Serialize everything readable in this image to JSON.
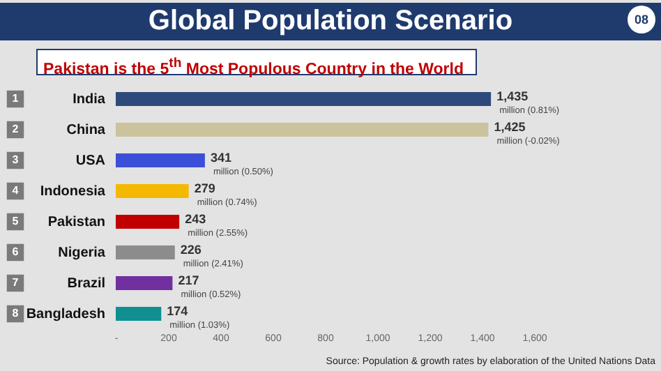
{
  "chart_data": {
    "type": "bar",
    "orientation": "horizontal",
    "title": "Global Population Scenario",
    "subtitle": "Pakistan is the 5$^{th}$ Most Populous Country in the World",
    "categories": [
      "India",
      "China",
      "USA",
      "Indonesia",
      "Pakistan",
      "Nigeria",
      "Brazil",
      "Bangladesh"
    ],
    "values": [
      1435,
      1425,
      341,
      279,
      243,
      226,
      217,
      174
    ],
    "colors": [
      "#2e4a7d",
      "#cbc29e",
      "#3b4fd8",
      "#f5b800",
      "#c00000",
      "#8c8c8c",
      "#7030a0",
      "#0f8f8f"
    ],
    "value_labels": [
      "1,435",
      "1,425",
      "341",
      "279",
      "243",
      "226",
      "217",
      "174"
    ],
    "xlim": [
      0,
      1600
    ],
    "xticks": [
      {
        "value": 0,
        "label": "-"
      },
      200,
      400,
      600,
      800,
      {
        "value": 1000,
        "label": "1,000"
      },
      {
        "value": 1200,
        "label": "1,200"
      },
      {
        "value": 1400,
        "label": "1,400"
      },
      {
        "value": 1600,
        "label": "1,600"
      }
    ],
    "grid": false,
    "annotations": [
      "million (0.81%)",
      "million (-0.02%)",
      "million (0.50%)",
      "million (0.74%)",
      "million (2.55%)",
      "million (2.41%)",
      "million (0.52%)",
      "million (1.03%)",
      "1",
      "2",
      "3",
      "4",
      "5",
      "6",
      "7",
      "8",
      "08",
      "Source: Population & growth rates by elaboration of the United Nations Data"
    ]
  }
}
